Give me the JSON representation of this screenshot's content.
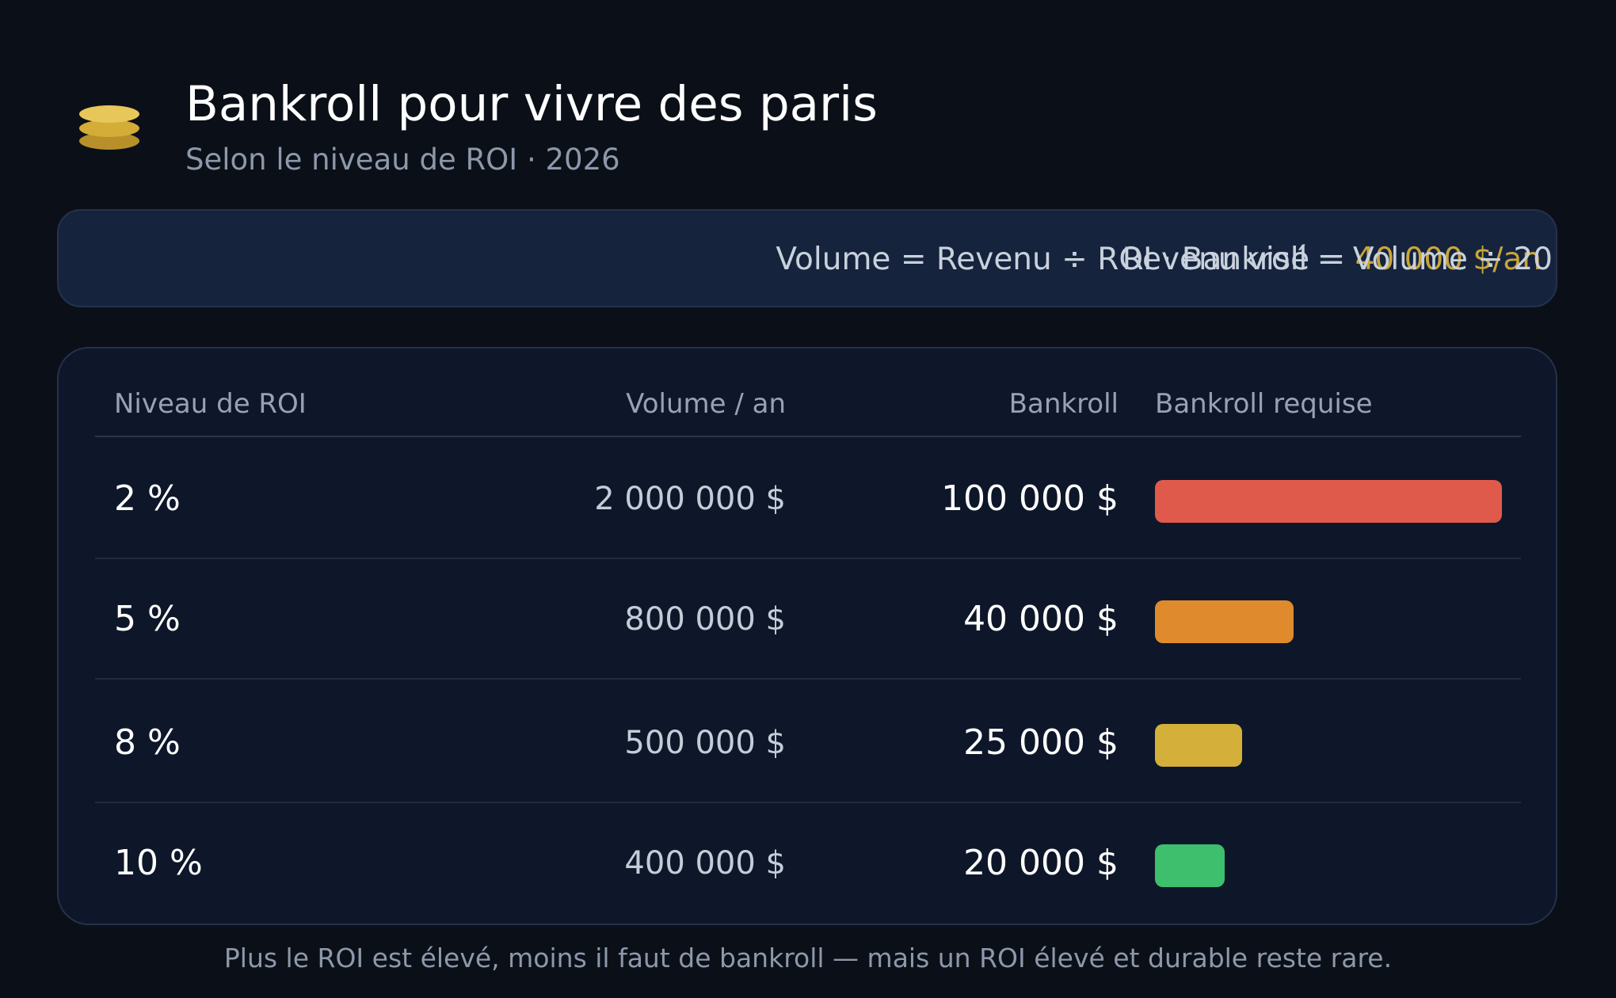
{
  "header": {
    "title": "Bankroll pour vivre des paris",
    "subtitle": "Selon le niveau de ROI · 2026",
    "icon": "coin-stack-icon"
  },
  "formula": {
    "line1_prefix": "Revenu visé = ",
    "line1_accent": "40 000 $/an",
    "line2": "Volume = Revenu ÷ ROI · Bankroll = Volume ÷ 20"
  },
  "table": {
    "headers": {
      "level": "Niveau de ROI",
      "volume": "Volume / an",
      "bankroll": "Bankroll",
      "bar": "Bankroll requise"
    },
    "rows": [
      {
        "level": "2 %",
        "volume": "2 000 000 $",
        "bankroll": "100 000 $"
      },
      {
        "level": "5 %",
        "volume": "800 000 $",
        "bankroll": "40 000 $"
      },
      {
        "level": "8 %",
        "volume": "500 000 $",
        "bankroll": "25 000 $"
      },
      {
        "level": "10 %",
        "volume": "400 000 $",
        "bankroll": "20 000 $"
      }
    ]
  },
  "chart_data": {
    "type": "bar",
    "orientation": "horizontal",
    "title": "Bankroll requise",
    "categories": [
      "2 %",
      "5 %",
      "8 %",
      "10 %"
    ],
    "values": [
      100000,
      40000,
      25000,
      20000
    ],
    "xlim": [
      0,
      100000
    ],
    "colors": [
      "#e05a4b",
      "#e08a2e",
      "#d4b03a",
      "#3dbf6e"
    ],
    "grid": false
  },
  "footer": "Plus le ROI est élevé, moins il faut de bankroll — mais un ROI élevé et durable reste rare.",
  "colors": {
    "background": "#0b1018",
    "card": "#0e1729",
    "formula_box": "#15233d",
    "accent": "#c9a63a"
  }
}
